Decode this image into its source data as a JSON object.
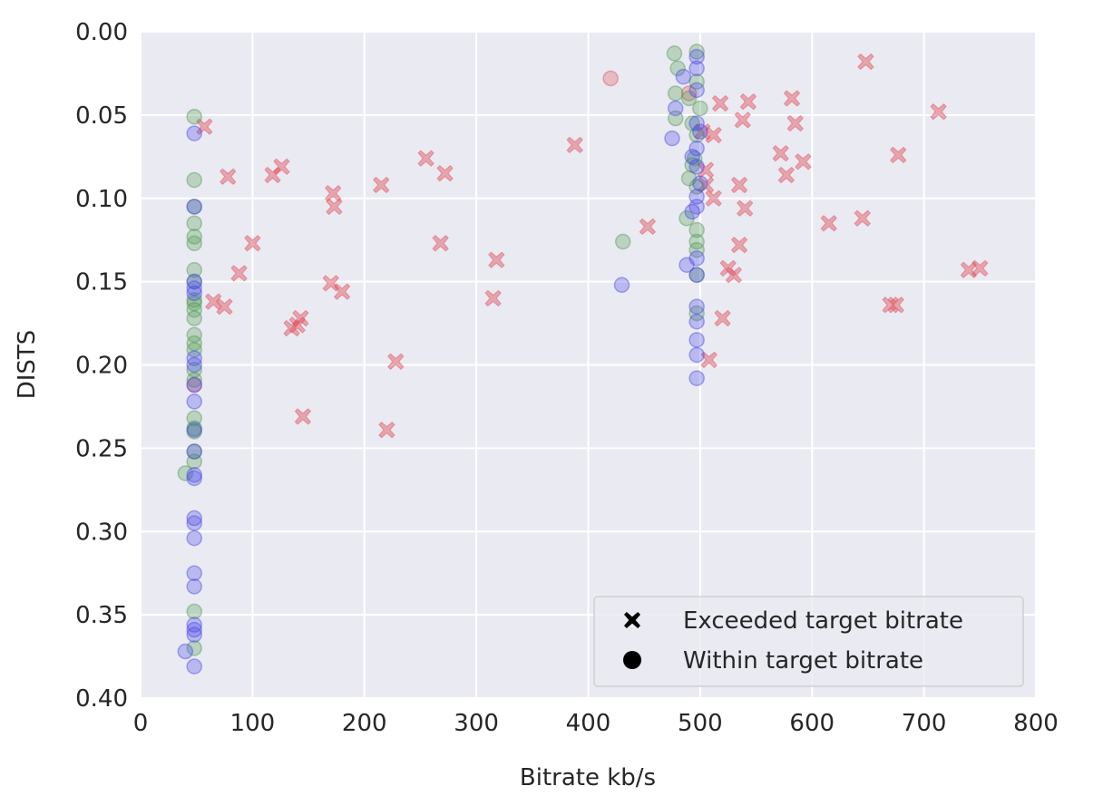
{
  "chart_data": {
    "type": "scatter",
    "xlabel": "Bitrate kb/s",
    "ylabel": "DISTS",
    "xlim": [
      0,
      800
    ],
    "xticks": [
      0,
      100,
      200,
      300,
      400,
      500,
      600,
      700,
      800
    ],
    "ylim": [
      0.4,
      0.0
    ],
    "yticks": [
      {
        "value": 0.0,
        "label": "0.00"
      },
      0.05,
      {
        "value": 0.1,
        "label": "0.10"
      },
      0.15,
      {
        "value": 0.2,
        "label": "0.20"
      },
      0.25,
      {
        "value": 0.3,
        "label": "0.30"
      },
      0.35,
      {
        "value": 0.4,
        "label": "0.40"
      }
    ],
    "grid": true,
    "legend": {
      "position": "lower right",
      "entries": [
        {
          "label": "Exceeded target bitrate",
          "marker": "x"
        },
        {
          "label": "Within target bitrate",
          "marker": "o"
        }
      ]
    },
    "series": [
      {
        "color": "#e0505a",
        "marker": "x",
        "x": [
          57,
          78,
          118,
          126,
          100,
          88,
          65,
          75,
          140,
          135,
          143,
          145,
          172,
          173,
          170,
          180,
          215,
          228,
          220,
          255,
          272,
          268,
          318,
          315,
          388,
          453,
          502,
          505,
          505,
          512,
          512,
          518,
          520,
          508,
          525,
          530,
          535,
          535,
          538,
          540,
          543,
          572,
          577,
          582,
          585,
          592,
          615,
          645,
          648,
          670,
          675,
          677,
          713,
          740,
          750
        ],
        "values": [
          0.057,
          0.087,
          0.086,
          0.081,
          0.127,
          0.145,
          0.162,
          0.165,
          0.176,
          0.178,
          0.172,
          0.231,
          0.097,
          0.105,
          0.151,
          0.156,
          0.092,
          0.198,
          0.239,
          0.076,
          0.085,
          0.127,
          0.137,
          0.16,
          0.068,
          0.117,
          0.06,
          0.083,
          0.092,
          0.062,
          0.1,
          0.043,
          0.172,
          0.197,
          0.142,
          0.146,
          0.092,
          0.128,
          0.053,
          0.106,
          0.042,
          0.073,
          0.086,
          0.04,
          0.055,
          0.078,
          0.115,
          0.112,
          0.018,
          0.164,
          0.164,
          0.074,
          0.048,
          0.143,
          0.142
        ]
      },
      {
        "color": "#e0505a",
        "marker": "o",
        "x": [
          420,
          48,
          490
        ],
        "values": [
          0.028,
          0.212,
          0.037
        ]
      },
      {
        "color": "#4f9a4f",
        "marker": "o",
        "x": [
          48,
          48,
          48,
          48,
          48,
          48,
          48,
          48,
          48,
          48,
          48,
          48,
          48,
          48,
          48,
          48,
          48,
          48,
          48,
          48,
          48,
          48,
          48,
          48,
          40,
          477,
          497,
          480,
          478,
          497,
          490,
          478,
          500,
          493,
          497,
          495,
          490,
          497,
          488,
          497,
          497,
          497,
          497,
          497,
          431,
          493
        ],
        "values": [
          0.051,
          0.089,
          0.105,
          0.115,
          0.123,
          0.127,
          0.143,
          0.15,
          0.161,
          0.163,
          0.167,
          0.172,
          0.182,
          0.187,
          0.191,
          0.203,
          0.209,
          0.232,
          0.238,
          0.24,
          0.252,
          0.258,
          0.348,
          0.37,
          0.265,
          0.013,
          0.012,
          0.022,
          0.037,
          0.03,
          0.04,
          0.052,
          0.046,
          0.055,
          0.062,
          0.076,
          0.088,
          0.093,
          0.112,
          0.119,
          0.126,
          0.131,
          0.146,
          0.169,
          0.126,
          0.08
        ]
      },
      {
        "color": "#4a4ae8",
        "marker": "o",
        "x": [
          48,
          48,
          48,
          48,
          48,
          48,
          48,
          48,
          48,
          48,
          48,
          48,
          48,
          48,
          48,
          48,
          48,
          48,
          48,
          48,
          48,
          48,
          40,
          497,
          497,
          485,
          497,
          478,
          475,
          497,
          500,
          497,
          493,
          497,
          500,
          497,
          497,
          493,
          497,
          488,
          497,
          497,
          497,
          497,
          497,
          497,
          430
        ],
        "values": [
          0.061,
          0.105,
          0.15,
          0.154,
          0.157,
          0.196,
          0.2,
          0.212,
          0.222,
          0.239,
          0.252,
          0.266,
          0.268,
          0.292,
          0.295,
          0.304,
          0.325,
          0.333,
          0.356,
          0.359,
          0.362,
          0.381,
          0.372,
          0.015,
          0.022,
          0.027,
          0.035,
          0.046,
          0.064,
          0.055,
          0.06,
          0.07,
          0.075,
          0.081,
          0.091,
          0.099,
          0.105,
          0.108,
          0.136,
          0.14,
          0.146,
          0.165,
          0.174,
          0.185,
          0.194,
          0.208,
          0.152
        ]
      }
    ]
  }
}
